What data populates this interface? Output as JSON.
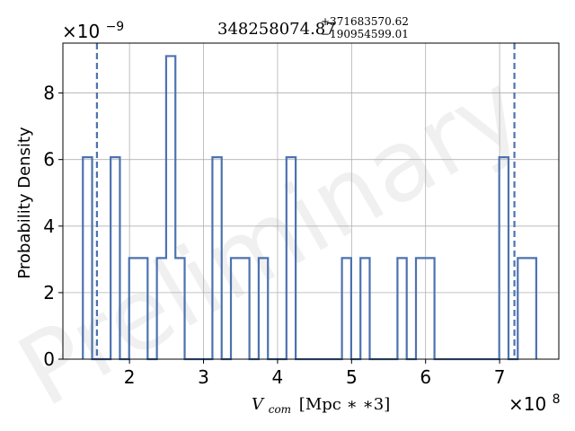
{
  "chart_data": {
    "type": "histogram",
    "title": {
      "main": "348258074.87",
      "sup": "+371683570.62",
      "sub": "−190954599.01"
    },
    "xlabel": {
      "var": "V",
      "sub": "com",
      "unit": "[Mpc ∗ ∗3]"
    },
    "ylabel": "Probability Density",
    "x_scale": {
      "base": "×10",
      "exp": "8"
    },
    "y_scale": {
      "base": "×10",
      "exp": "−9"
    },
    "xlim": [
      110000000.0,
      780000000.0
    ],
    "ylim": [
      0,
      9.5e-09
    ],
    "xticks": [
      200000000.0,
      300000000.0,
      400000000.0,
      500000000.0,
      600000000.0,
      700000000.0
    ],
    "xtick_labels": [
      "2",
      "3",
      "4",
      "5",
      "6",
      "7"
    ],
    "yticks": [
      0,
      2e-09,
      4e-09,
      6e-09,
      8e-09
    ],
    "ytick_labels": [
      "0",
      "2",
      "4",
      "6",
      "8"
    ],
    "grid": true,
    "color": "#4c72b0",
    "bin_edges": [
      137000000,
      149500000,
      162000000,
      174500000,
      187000000,
      199500000,
      212000000,
      224500000,
      237000000,
      249500000,
      262000000,
      274500000,
      287000000,
      299500000,
      312000000,
      324500000,
      337000000,
      349500000,
      362000000,
      374500000,
      387000000,
      399500000,
      412000000,
      424500000,
      437000000,
      449500000,
      462000000,
      474500000,
      487000000,
      499500000,
      512000000,
      524500000,
      537000000,
      549500000,
      562000000,
      574500000,
      587000000,
      599500000,
      612000000,
      624500000,
      637000000,
      649500000,
      662000000,
      674500000,
      687000000,
      699500000,
      712000000,
      724500000,
      737000000,
      749500000
    ],
    "densities": [
      6.07e-09,
      0,
      0,
      6.07e-09,
      0,
      3.04e-09,
      3.04e-09,
      0,
      3.04e-09,
      9.11e-09,
      3.04e-09,
      0,
      0,
      0,
      6.07e-09,
      0,
      3.04e-09,
      3.04e-09,
      0,
      3.04e-09,
      0,
      0,
      6.07e-09,
      0,
      0,
      0,
      0,
      0,
      3.04e-09,
      0,
      3.04e-09,
      0,
      0,
      0,
      3.04e-09,
      0,
      3.04e-09,
      3.04e-09,
      0,
      0,
      0,
      0,
      0,
      0,
      0,
      6.07e-09,
      0,
      3.04e-09,
      3.04e-09
    ],
    "quantile_lines": [
      156000000,
      720000000
    ]
  },
  "watermark": "Preliminary"
}
